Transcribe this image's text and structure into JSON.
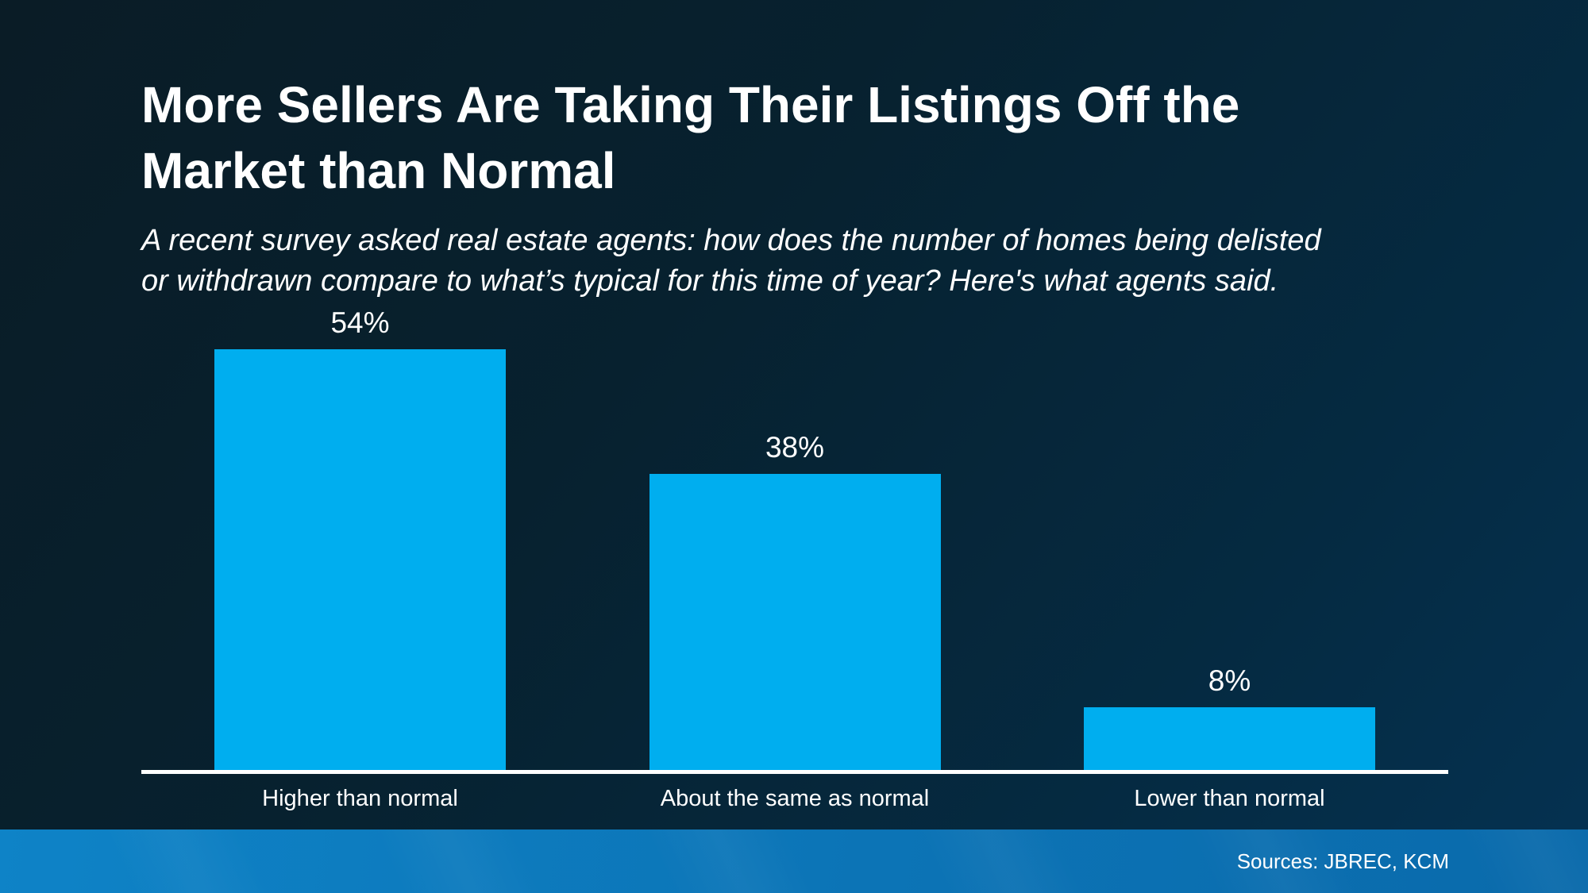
{
  "title": {
    "full": "More Sellers Are Taking Their Listings Off the Market than Normal",
    "line1": "More Sellers Are Taking Their Listings Off the",
    "line2": "Market than Normal"
  },
  "subtitle": {
    "full": "A recent survey asked real estate agents: how does the number of homes being delisted or withdrawn compare to what’s typical for this time of year? Here's what agents said.",
    "line1": "A recent survey asked real estate agents: how does the number of homes being delisted",
    "line2": "or withdrawn compare to what’s typical for this time of year? Here's what agents said."
  },
  "footer": {
    "sources": "Sources: JBREC, KCM"
  },
  "colors": {
    "bar": "#00AEEF",
    "background_top_left": "#0a1c26",
    "background_bottom_right": "#053252",
    "footer_blue_left": "#0e83c7",
    "footer_blue_right": "#0a6aab",
    "axis": "#ffffff",
    "text": "#ffffff"
  },
  "chart_data": {
    "type": "bar",
    "title": "More Sellers Are Taking Their Listings Off the Market than Normal",
    "subtitle": "A recent survey asked real estate agents: how does the number of homes being delisted or withdrawn compare to what’s typical for this time of year? Here's what agents said.",
    "categories": [
      "Higher than normal",
      "About the same as normal",
      "Lower than normal"
    ],
    "values": [
      54,
      38,
      8
    ],
    "value_labels": [
      "54%",
      "38%",
      "8%"
    ],
    "xlabel": "",
    "ylabel": "",
    "ylim": [
      0,
      60
    ],
    "grid": false,
    "legend": false,
    "bar_color": "#00AEEF",
    "value_label_position": "above-bar",
    "axis_line_color": "#ffffff"
  }
}
